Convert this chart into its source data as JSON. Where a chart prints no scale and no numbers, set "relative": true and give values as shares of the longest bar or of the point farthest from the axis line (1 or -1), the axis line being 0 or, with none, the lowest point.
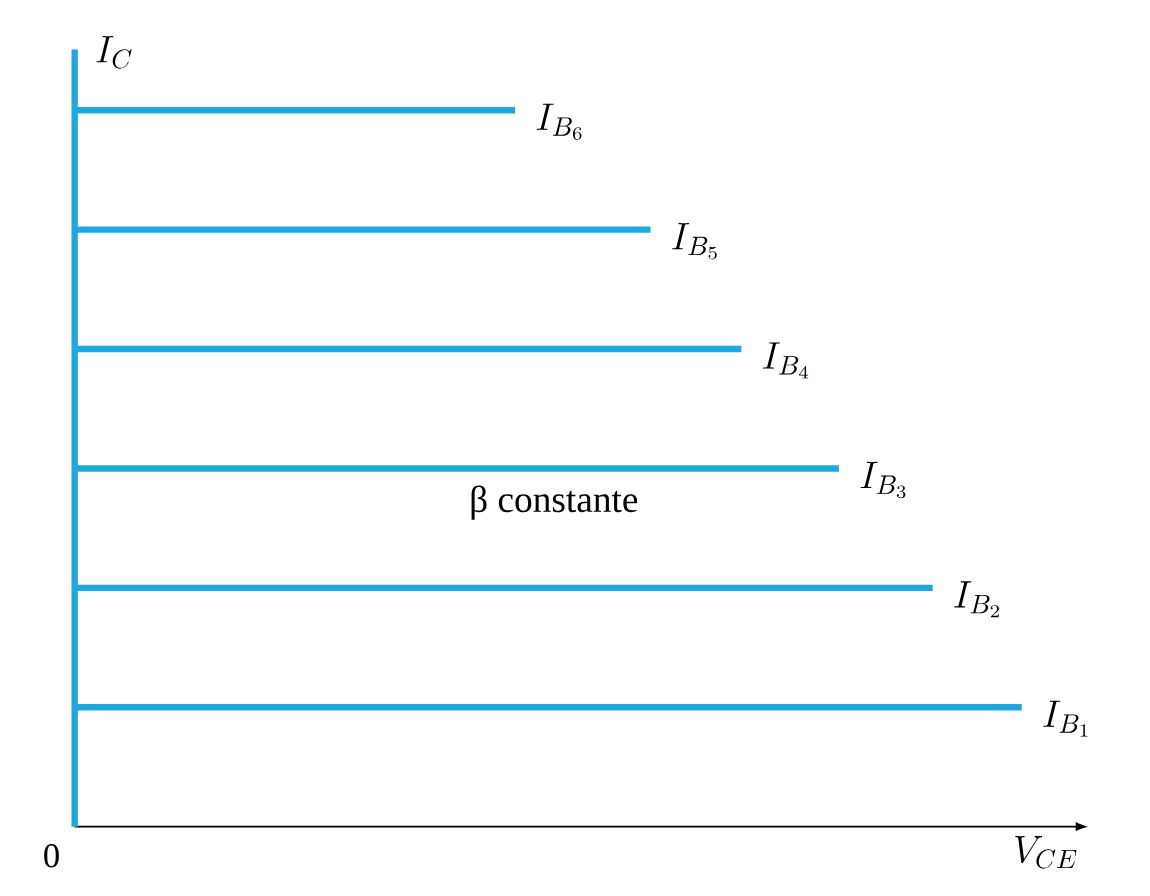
{
  "chart_data": {
    "type": "bar",
    "orientation": "horizontal",
    "relative": true,
    "xlabel": "V_{CE}",
    "ylabel": "I_C",
    "categories": [
      "I_{B_6}",
      "I_{B_5}",
      "I_{B_4}",
      "I_{B_3}",
      "I_{B_2}",
      "I_{B_1}"
    ],
    "values": [
      0.465,
      0.608,
      0.704,
      0.807,
      0.906,
      1
    ],
    "color": "#1fa8e0",
    "annotations": [
      "β constante",
      "0"
    ]
  }
}
